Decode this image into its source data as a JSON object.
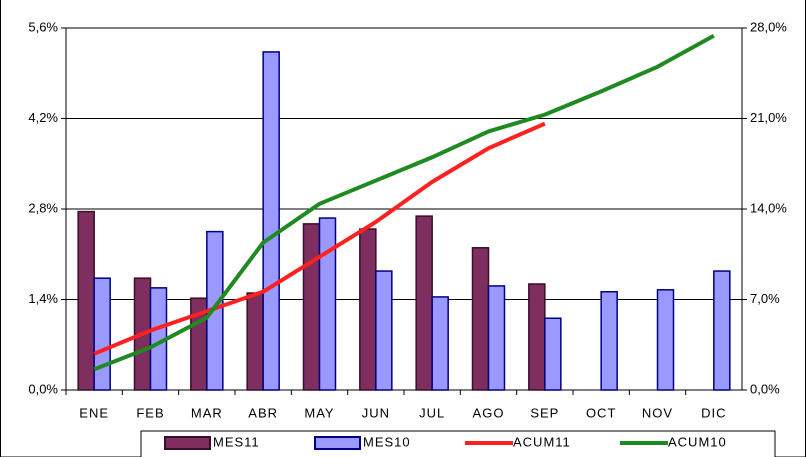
{
  "chart_data": {
    "type": "bar-line",
    "categories": [
      "ENE",
      "FEB",
      "MAR",
      "ABR",
      "MAY",
      "JUN",
      "JUL",
      "AGO",
      "SEP",
      "OCT",
      "NOV",
      "DIC"
    ],
    "series": [
      {
        "name": "MES11",
        "type": "bar",
        "color": "#7f2f5f",
        "values": [
          2.76,
          1.73,
          1.42,
          1.5,
          2.57,
          2.49,
          2.69,
          2.2,
          1.64,
          null,
          null,
          null
        ]
      },
      {
        "name": "MES10",
        "type": "bar",
        "color": "#9999ff",
        "values": [
          1.73,
          1.58,
          2.45,
          5.23,
          2.66,
          1.84,
          1.44,
          1.61,
          1.11,
          1.52,
          1.55,
          1.84
        ]
      },
      {
        "name": "ACUM11",
        "type": "line",
        "axis": "y2",
        "color": "#ff2020",
        "values": [
          2.8,
          4.6,
          6.1,
          7.6,
          10.3,
          13.0,
          16.1,
          18.7,
          20.6,
          null,
          null,
          null
        ]
      },
      {
        "name": "ACUM10",
        "type": "line",
        "axis": "y2",
        "color": "#1f8a1f",
        "values": [
          1.6,
          3.3,
          5.6,
          11.4,
          14.4,
          16.2,
          18.0,
          20.0,
          21.3,
          23.1,
          25.0,
          27.4
        ]
      }
    ],
    "ylim": [
      0,
      5.6
    ],
    "yticks": [
      {
        "value": 0,
        "label": "0,0%"
      },
      {
        "value": 1.4,
        "label": "1,4%"
      },
      {
        "value": 2.8,
        "label": "2,8%"
      },
      {
        "value": 4.2,
        "label": "4,2%"
      },
      {
        "value": 5.6,
        "label": "5,6%"
      }
    ],
    "y2lim": [
      0,
      28
    ],
    "y2ticks": [
      {
        "value": 0,
        "label": "0,0%"
      },
      {
        "value": 7,
        "label": "7,0%"
      },
      {
        "value": 14,
        "label": "14,0%"
      },
      {
        "value": 21,
        "label": "21,0%"
      },
      {
        "value": 28,
        "label": "28,0%"
      }
    ],
    "grid": true,
    "legend": "bottom"
  }
}
